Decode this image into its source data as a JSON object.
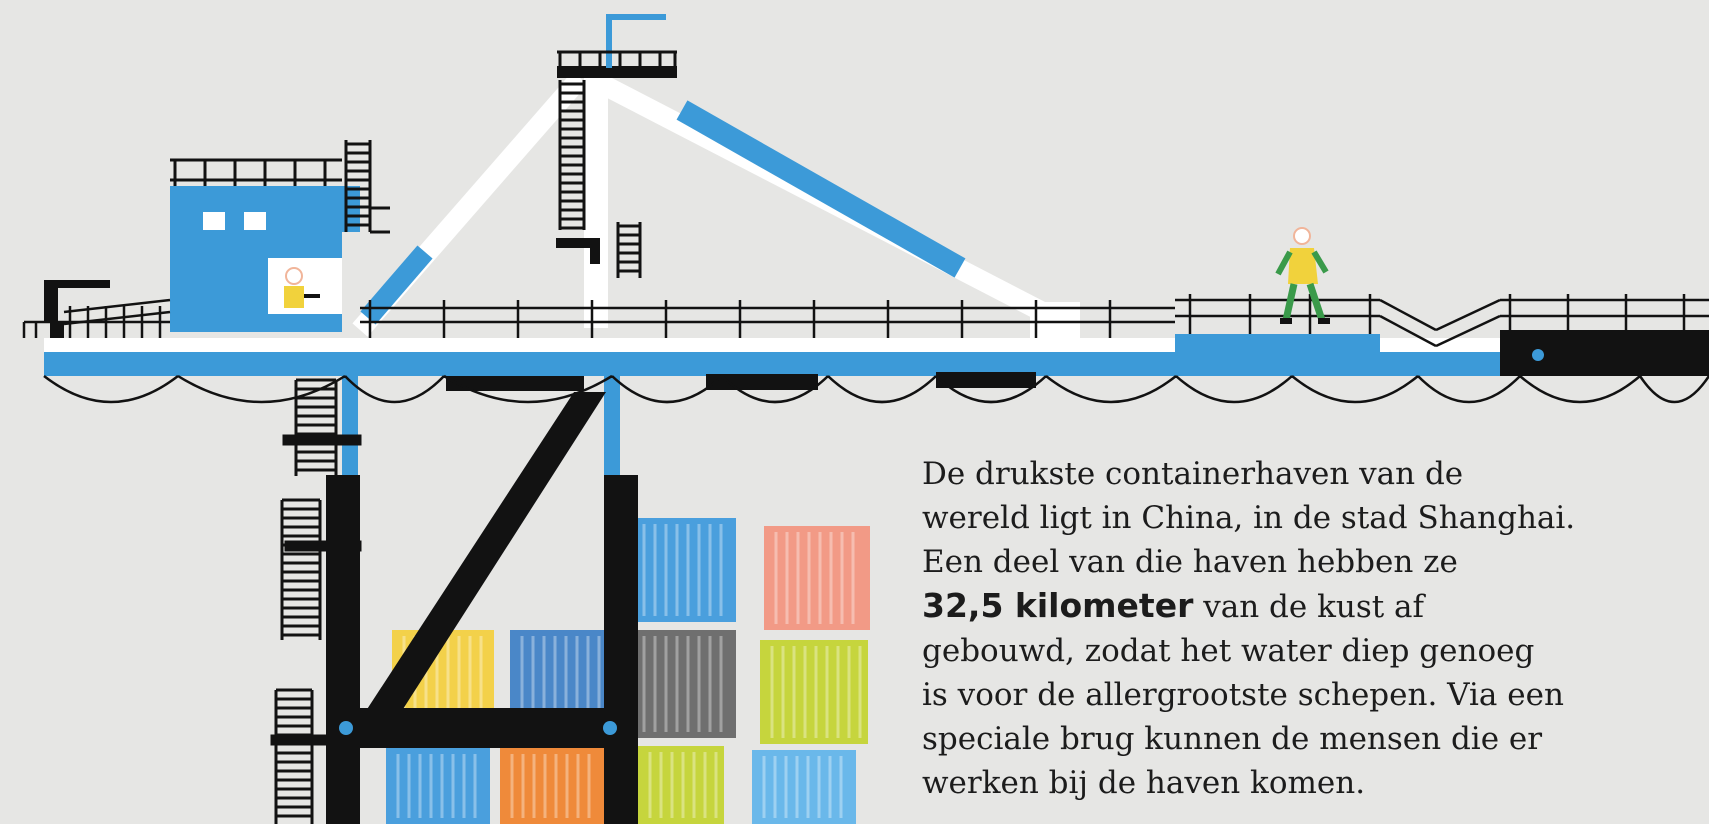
{
  "caption": {
    "line1": "De drukste containerhaven van de",
    "line2": "wereld ligt in China, in de stad Shanghai.",
    "line3": "Een deel van die haven hebben ze",
    "line4_bold": "32,5 kilometer",
    "line4_rest": " van de kust af",
    "line5": "gebouwd, zodat het water diep genoeg",
    "line6": "is voor de allergrootste schepen. Via een",
    "line7": "speciale brug kunnen de mensen die er",
    "line8": "werken bij de haven komen."
  },
  "colors": {
    "background": "#e6e6e4",
    "crane_blue": "#3c9ad8",
    "crane_black": "#121212",
    "white": "#ffffff",
    "container_blue": "#4a9fdd",
    "container_coral": "#f29a86",
    "container_yellow": "#f3d14a",
    "container_grey": "#6f6f6f",
    "container_lime": "#c6d53d",
    "container_orange": "#ef8a3a",
    "container_lightblue": "#6ab8ea",
    "worker_green": "#3a9a4a",
    "worker_yellow": "#f1d23c"
  },
  "icons": [
    "crane-illustration",
    "worker-figure",
    "shipping-container"
  ]
}
